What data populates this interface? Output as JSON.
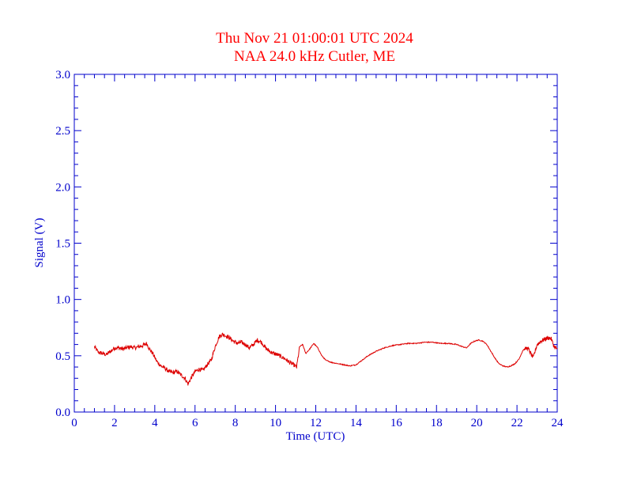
{
  "chart_data": {
    "type": "line",
    "title": "Thu Nov 21 01:00:01 UTC 2024",
    "subtitle": "NAA 24.0 kHz Cutler, ME",
    "xlabel": "Time (UTC)",
    "ylabel": "Signal (V)",
    "xlim": [
      0,
      24
    ],
    "ylim": [
      0,
      3.0
    ],
    "x_ticks": [
      "0",
      "2",
      "4",
      "6",
      "8",
      "10",
      "12",
      "14",
      "16",
      "18",
      "20",
      "22",
      "24"
    ],
    "y_ticks": [
      "0.0",
      "0.5",
      "1.0",
      "1.5",
      "2.0",
      "2.5",
      "3.0"
    ],
    "grid": false,
    "color": "#dd0000",
    "axis_color": "#0000cc",
    "title_color": "#ff0000",
    "series": [
      {
        "x": [
          1.0,
          1.2,
          1.4,
          1.6,
          1.8,
          2.0,
          2.2,
          2.4,
          2.6,
          2.8,
          3.0,
          3.2,
          3.4,
          3.6,
          3.7,
          3.9,
          4.1,
          4.3,
          4.5,
          4.7,
          4.9,
          5.1,
          5.3,
          5.5,
          5.65,
          5.8,
          6.0,
          6.2,
          6.4,
          6.6,
          6.8,
          7.0,
          7.2,
          7.35,
          7.5,
          7.7,
          7.9,
          8.1,
          8.3,
          8.5,
          8.7,
          8.9,
          9.1,
          9.3,
          9.5,
          9.7,
          9.9,
          10.1,
          10.3,
          10.5,
          10.7,
          10.9,
          11.05,
          11.2,
          11.35,
          11.5,
          11.7,
          11.9,
          12.1,
          12.3,
          12.5,
          12.8,
          13.1,
          13.4,
          13.7,
          14.0,
          14.3,
          14.6,
          15.0,
          15.4,
          15.8,
          16.2,
          16.6,
          17.0,
          17.4,
          17.8,
          18.2,
          18.6,
          19.0,
          19.3,
          19.5,
          19.7,
          19.9,
          20.1,
          20.3,
          20.5,
          20.7,
          20.9,
          21.1,
          21.3,
          21.5,
          21.7,
          21.9,
          22.1,
          22.3,
          22.5,
          22.6,
          22.8,
          23.0,
          23.2,
          23.4,
          23.6,
          23.7,
          23.85,
          24.0
        ],
        "values": [
          0.58,
          0.53,
          0.52,
          0.51,
          0.54,
          0.57,
          0.57,
          0.56,
          0.57,
          0.58,
          0.57,
          0.58,
          0.59,
          0.61,
          0.57,
          0.52,
          0.45,
          0.41,
          0.39,
          0.36,
          0.35,
          0.36,
          0.33,
          0.3,
          0.25,
          0.3,
          0.36,
          0.38,
          0.37,
          0.42,
          0.46,
          0.58,
          0.67,
          0.69,
          0.68,
          0.66,
          0.63,
          0.61,
          0.62,
          0.6,
          0.57,
          0.6,
          0.64,
          0.62,
          0.57,
          0.54,
          0.52,
          0.51,
          0.49,
          0.47,
          0.44,
          0.42,
          0.4,
          0.58,
          0.6,
          0.52,
          0.56,
          0.61,
          0.57,
          0.5,
          0.46,
          0.44,
          0.43,
          0.42,
          0.41,
          0.42,
          0.46,
          0.5,
          0.54,
          0.57,
          0.59,
          0.6,
          0.61,
          0.61,
          0.62,
          0.62,
          0.61,
          0.61,
          0.6,
          0.58,
          0.57,
          0.61,
          0.63,
          0.64,
          0.63,
          0.6,
          0.54,
          0.48,
          0.43,
          0.41,
          0.4,
          0.41,
          0.43,
          0.47,
          0.55,
          0.57,
          0.55,
          0.48,
          0.6,
          0.63,
          0.65,
          0.66,
          0.65,
          0.58,
          0.56
        ]
      }
    ]
  }
}
